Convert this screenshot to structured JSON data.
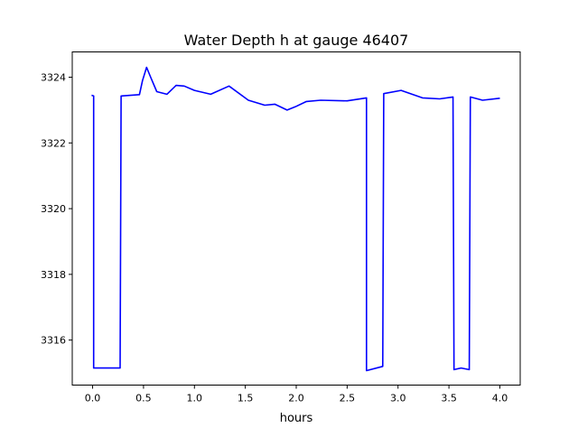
{
  "chart_data": {
    "type": "line",
    "title": "Water Depth h at gauge 46407",
    "xlabel": "hours",
    "ylabel": "",
    "xlim": [
      -0.2,
      4.2
    ],
    "ylim": [
      3314.63,
      3324.77
    ],
    "xticks": [
      0.0,
      0.5,
      1.0,
      1.5,
      2.0,
      2.5,
      3.0,
      3.5,
      4.0
    ],
    "xtick_labels": [
      "0.0",
      "0.5",
      "1.0",
      "1.5",
      "2.0",
      "2.5",
      "3.0",
      "3.5",
      "4.0"
    ],
    "yticks": [
      3316,
      3318,
      3320,
      3322,
      3324
    ],
    "ytick_labels": [
      "3316",
      "3318",
      "3320",
      "3322",
      "3324"
    ],
    "grid": false,
    "series": [
      {
        "name": "h",
        "color": "#0000ff",
        "x": [
          -0.01,
          0.01,
          0.01,
          0.27,
          0.28,
          0.46,
          0.49,
          0.53,
          0.57,
          0.63,
          0.73,
          0.82,
          0.9,
          1.0,
          1.16,
          1.34,
          1.53,
          1.69,
          1.79,
          1.91,
          1.99,
          2.1,
          2.24,
          2.5,
          2.69,
          2.69,
          2.85,
          2.86,
          3.03,
          3.24,
          3.41,
          3.54,
          3.55,
          3.62,
          3.7,
          3.71,
          3.83,
          4.0
        ],
        "y": [
          3323.45,
          3323.43,
          3315.15,
          3315.15,
          3323.43,
          3323.47,
          3323.9,
          3324.3,
          3324.0,
          3323.56,
          3323.48,
          3323.75,
          3323.73,
          3323.6,
          3323.48,
          3323.73,
          3323.3,
          3323.15,
          3323.18,
          3323.0,
          3323.1,
          3323.26,
          3323.3,
          3323.28,
          3323.37,
          3315.07,
          3315.2,
          3323.5,
          3323.6,
          3323.37,
          3323.34,
          3323.4,
          3315.1,
          3315.15,
          3315.1,
          3323.4,
          3323.3,
          3323.36
        ]
      }
    ]
  }
}
